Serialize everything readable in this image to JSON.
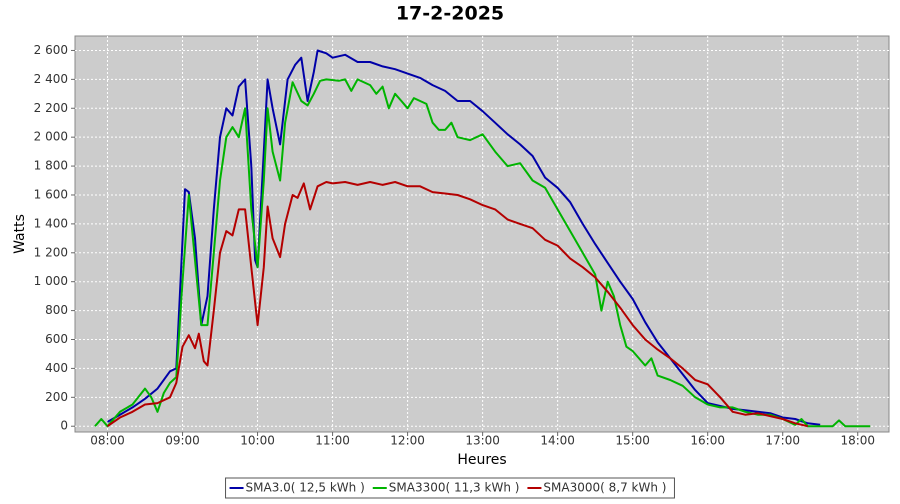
{
  "chart_data": {
    "type": "line",
    "title": "17-2-2025",
    "x_label": "Heures",
    "y_label": "Watts",
    "xlim": [
      "07:34",
      "18:25"
    ],
    "ylim": [
      -40,
      2700
    ],
    "xticks": [
      "08:00",
      "09:00",
      "10:00",
      "11:00",
      "12:00",
      "13:00",
      "14:00",
      "15:00",
      "16:00",
      "17:00",
      "18:00"
    ],
    "yticks": [
      0,
      200,
      400,
      600,
      800,
      {
        "value": 1000,
        "label": "1 000"
      },
      {
        "value": 1200,
        "label": "1 200"
      },
      {
        "value": 1400,
        "label": "1 400"
      },
      {
        "value": 1600,
        "label": "1 600"
      },
      {
        "value": 1800,
        "label": "1 800"
      },
      {
        "value": 2000,
        "label": "2 000"
      },
      {
        "value": 2200,
        "label": "2 200"
      },
      {
        "value": 2400,
        "label": "2 400"
      },
      {
        "value": 2600,
        "label": "2 600"
      }
    ],
    "grid": true,
    "legend": "bottom",
    "series": [
      {
        "name": "SMA3.0( 12,5 kWh )",
        "color": "#0000a8",
        "x": [
          "08:00",
          "08:10",
          "08:20",
          "08:30",
          "08:40",
          "08:50",
          "08:55",
          "09:02",
          "09:05",
          "09:10",
          "09:15",
          "09:20",
          "09:25",
          "09:30",
          "09:35",
          "09:40",
          "09:45",
          "09:50",
          "09:55",
          "09:58",
          "10:00",
          "10:05",
          "10:08",
          "10:12",
          "10:18",
          "10:24",
          "10:30",
          "10:35",
          "10:40",
          "10:45",
          "10:48",
          "10:55",
          "11:00",
          "11:10",
          "11:20",
          "11:30",
          "11:40",
          "11:50",
          "12:00",
          "12:10",
          "12:20",
          "12:30",
          "12:40",
          "12:50",
          "13:00",
          "13:10",
          "13:20",
          "13:30",
          "13:40",
          "13:50",
          "14:00",
          "14:10",
          "14:20",
          "14:30",
          "14:40",
          "14:50",
          "15:00",
          "15:10",
          "15:20",
          "15:30",
          "15:40",
          "15:50",
          "16:00",
          "16:10",
          "16:20",
          "16:30",
          "16:40",
          "16:50",
          "17:00",
          "17:10",
          "17:20",
          "17:30"
        ],
        "values": [
          30,
          80,
          130,
          190,
          260,
          380,
          400,
          1640,
          1620,
          1300,
          700,
          900,
          1500,
          2000,
          2200,
          2150,
          2350,
          2400,
          1800,
          1150,
          1100,
          1900,
          2400,
          2200,
          1950,
          2400,
          2500,
          2550,
          2250,
          2450,
          2600,
          2580,
          2550,
          2570,
          2520,
          2520,
          2490,
          2470,
          2440,
          2410,
          2360,
          2320,
          2250,
          2250,
          2180,
          2100,
          2020,
          1950,
          1870,
          1720,
          1650,
          1550,
          1400,
          1260,
          1130,
          1000,
          880,
          720,
          580,
          470,
          360,
          250,
          160,
          140,
          120,
          110,
          100,
          90,
          60,
          50,
          20,
          10
        ]
      },
      {
        "name": "SMA3300( 11,3 kWh )",
        "color": "#00b400",
        "x": [
          "07:50",
          "07:55",
          "08:00",
          "08:10",
          "08:20",
          "08:30",
          "08:35",
          "08:40",
          "08:45",
          "08:50",
          "08:55",
          "09:00",
          "09:05",
          "09:10",
          "09:15",
          "09:20",
          "09:25",
          "09:30",
          "09:35",
          "09:40",
          "09:45",
          "09:50",
          "09:55",
          "10:00",
          "10:05",
          "10:08",
          "10:12",
          "10:18",
          "10:22",
          "10:28",
          "10:35",
          "10:40",
          "10:45",
          "10:50",
          "10:55",
          "11:05",
          "11:10",
          "11:15",
          "11:20",
          "11:30",
          "11:35",
          "11:40",
          "11:45",
          "11:50",
          "11:55",
          "12:00",
          "12:05",
          "12:10",
          "12:15",
          "12:20",
          "12:25",
          "12:30",
          "12:35",
          "12:40",
          "12:50",
          "13:00",
          "13:10",
          "13:20",
          "13:30",
          "13:40",
          "13:50",
          "14:00",
          "14:10",
          "14:20",
          "14:30",
          "14:35",
          "14:40",
          "14:45",
          "14:50",
          "14:55",
          "15:00",
          "15:10",
          "15:15",
          "15:20",
          "15:30",
          "15:40",
          "15:50",
          "16:00",
          "16:10",
          "16:20",
          "16:30",
          "16:40",
          "16:50",
          "17:00",
          "17:10",
          "17:15",
          "17:20",
          "17:40",
          "17:45",
          "17:50",
          "18:10"
        ],
        "values": [
          0,
          50,
          0,
          100,
          150,
          260,
          200,
          100,
          230,
          300,
          340,
          1000,
          1600,
          1150,
          700,
          700,
          1200,
          1700,
          2000,
          2070,
          2000,
          2200,
          1500,
          1100,
          1700,
          2200,
          1900,
          1700,
          2100,
          2380,
          2250,
          2220,
          2300,
          2390,
          2400,
          2390,
          2400,
          2320,
          2400,
          2360,
          2300,
          2350,
          2200,
          2300,
          2250,
          2200,
          2270,
          2250,
          2230,
          2100,
          2050,
          2050,
          2100,
          2000,
          1980,
          2020,
          1900,
          1800,
          1820,
          1700,
          1650,
          1500,
          1350,
          1200,
          1050,
          800,
          1000,
          900,
          700,
          550,
          520,
          420,
          470,
          350,
          320,
          280,
          200,
          150,
          130,
          130,
          100,
          80,
          80,
          50,
          10,
          50,
          0,
          0,
          40,
          0,
          0
        ]
      },
      {
        "name": "SMA3000( 8,7 kWh )",
        "color": "#b40000",
        "x": [
          "08:00",
          "08:10",
          "08:20",
          "08:30",
          "08:40",
          "08:50",
          "08:55",
          "09:00",
          "09:05",
          "09:10",
          "09:13",
          "09:17",
          "09:20",
          "09:25",
          "09:30",
          "09:35",
          "09:40",
          "09:45",
          "09:50",
          "09:55",
          "10:00",
          "10:05",
          "10:08",
          "10:12",
          "10:18",
          "10:22",
          "10:28",
          "10:32",
          "10:37",
          "10:42",
          "10:48",
          "10:55",
          "11:00",
          "11:10",
          "11:20",
          "11:30",
          "11:40",
          "11:50",
          "12:00",
          "12:10",
          "12:20",
          "12:30",
          "12:40",
          "12:50",
          "13:00",
          "13:10",
          "13:20",
          "13:30",
          "13:40",
          "13:50",
          "14:00",
          "14:10",
          "14:20",
          "14:30",
          "14:40",
          "14:50",
          "15:00",
          "15:10",
          "15:20",
          "15:30",
          "15:40",
          "15:50",
          "16:00",
          "16:10",
          "16:20",
          "16:30",
          "16:40",
          "16:50",
          "17:00",
          "17:10",
          "17:20"
        ],
        "values": [
          0,
          60,
          100,
          150,
          160,
          200,
          300,
          550,
          630,
          540,
          640,
          450,
          420,
          800,
          1200,
          1350,
          1320,
          1500,
          1500,
          1100,
          700,
          1100,
          1520,
          1300,
          1170,
          1400,
          1600,
          1580,
          1680,
          1500,
          1660,
          1690,
          1680,
          1690,
          1670,
          1690,
          1670,
          1690,
          1660,
          1660,
          1620,
          1610,
          1600,
          1570,
          1530,
          1500,
          1430,
          1400,
          1370,
          1290,
          1250,
          1160,
          1100,
          1030,
          930,
          820,
          700,
          600,
          530,
          470,
          400,
          320,
          290,
          200,
          100,
          80,
          90,
          70,
          50,
          20,
          0
        ]
      }
    ]
  }
}
